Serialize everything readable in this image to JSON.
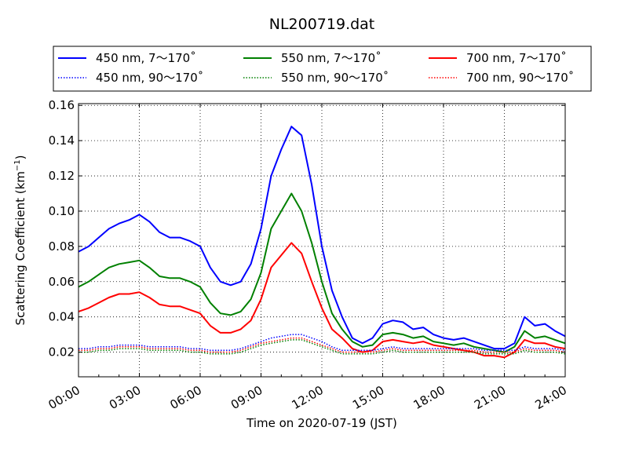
{
  "chart_data": {
    "type": "line",
    "title": "NL200719.dat",
    "xlabel": "Time on 2020-07-19 (JST)",
    "ylabel": "Scattering Coefficient (km",
    "ylabel_sup": "−1",
    "ylabel_tail": ")",
    "xlim": [
      0,
      24
    ],
    "ylim": [
      0.006,
      0.161
    ],
    "grid": true,
    "legend_position": "top",
    "x_ticks": [
      {
        "value": 0,
        "label": "00:00"
      },
      {
        "value": 3,
        "label": "03:00"
      },
      {
        "value": 6,
        "label": "06:00"
      },
      {
        "value": 9,
        "label": "09:00"
      },
      {
        "value": 12,
        "label": "12:00"
      },
      {
        "value": 15,
        "label": "15:00"
      },
      {
        "value": 18,
        "label": "18:00"
      },
      {
        "value": 21,
        "label": "21:00"
      },
      {
        "value": 24,
        "label": "24:00"
      }
    ],
    "y_ticks": [
      {
        "value": 0.02,
        "label": "0.02"
      },
      {
        "value": 0.04,
        "label": "0.04"
      },
      {
        "value": 0.06,
        "label": "0.06"
      },
      {
        "value": 0.08,
        "label": "0.08"
      },
      {
        "value": 0.1,
        "label": "0.10"
      },
      {
        "value": 0.12,
        "label": "0.12"
      },
      {
        "value": 0.14,
        "label": "0.14"
      },
      {
        "value": 0.16,
        "label": "0.16"
      }
    ],
    "x": [
      0,
      0.5,
      1,
      1.5,
      2,
      2.5,
      3,
      3.5,
      4,
      4.5,
      5,
      5.5,
      6,
      6.5,
      7,
      7.5,
      8,
      8.5,
      9,
      9.5,
      10,
      10.5,
      11,
      11.5,
      12,
      12.5,
      13,
      13.5,
      14,
      14.5,
      15,
      15.5,
      16,
      16.5,
      17,
      17.5,
      18,
      18.5,
      19,
      19.5,
      20,
      20.5,
      21,
      21.5,
      22,
      22.5,
      23,
      23.5,
      24
    ],
    "series": [
      {
        "name": "450 nm, 7～170˚",
        "color": "#0000ff",
        "style": "solid",
        "values": [
          0.077,
          0.08,
          0.085,
          0.09,
          0.093,
          0.095,
          0.098,
          0.094,
          0.088,
          0.085,
          0.085,
          0.083,
          0.08,
          0.068,
          0.06,
          0.058,
          0.06,
          0.07,
          0.09,
          0.12,
          0.135,
          0.148,
          0.143,
          0.115,
          0.08,
          0.055,
          0.04,
          0.028,
          0.025,
          0.028,
          0.036,
          0.038,
          0.037,
          0.033,
          0.034,
          0.03,
          0.028,
          0.027,
          0.028,
          0.026,
          0.024,
          0.022,
          0.022,
          0.025,
          0.04,
          0.035,
          0.036,
          0.032,
          0.029
        ]
      },
      {
        "name": "550 nm, 7～170˚",
        "color": "#008000",
        "style": "solid",
        "values": [
          0.057,
          0.06,
          0.064,
          0.068,
          0.07,
          0.071,
          0.072,
          0.068,
          0.063,
          0.062,
          0.062,
          0.06,
          0.057,
          0.048,
          0.042,
          0.041,
          0.043,
          0.05,
          0.065,
          0.09,
          0.1,
          0.11,
          0.1,
          0.082,
          0.06,
          0.042,
          0.033,
          0.026,
          0.023,
          0.024,
          0.03,
          0.031,
          0.03,
          0.028,
          0.029,
          0.026,
          0.025,
          0.024,
          0.025,
          0.023,
          0.022,
          0.021,
          0.02,
          0.023,
          0.032,
          0.028,
          0.029,
          0.027,
          0.025
        ]
      },
      {
        "name": "700 nm, 7～170˚",
        "color": "#ff0000",
        "style": "solid",
        "values": [
          0.043,
          0.045,
          0.048,
          0.051,
          0.053,
          0.053,
          0.054,
          0.051,
          0.047,
          0.046,
          0.046,
          0.044,
          0.042,
          0.035,
          0.031,
          0.031,
          0.033,
          0.038,
          0.05,
          0.068,
          0.075,
          0.082,
          0.076,
          0.06,
          0.045,
          0.033,
          0.028,
          0.022,
          0.02,
          0.021,
          0.026,
          0.027,
          0.026,
          0.025,
          0.026,
          0.024,
          0.023,
          0.022,
          0.021,
          0.02,
          0.018,
          0.018,
          0.017,
          0.02,
          0.027,
          0.025,
          0.025,
          0.023,
          0.022
        ]
      },
      {
        "name": "450 nm, 90～170˚",
        "color": "#0000ff",
        "style": "dotted",
        "values": [
          0.022,
          0.022,
          0.023,
          0.023,
          0.024,
          0.024,
          0.024,
          0.023,
          0.023,
          0.023,
          0.023,
          0.022,
          0.022,
          0.021,
          0.021,
          0.021,
          0.022,
          0.024,
          0.026,
          0.028,
          0.029,
          0.03,
          0.03,
          0.028,
          0.026,
          0.023,
          0.021,
          0.021,
          0.021,
          0.021,
          0.022,
          0.023,
          0.022,
          0.022,
          0.022,
          0.022,
          0.022,
          0.022,
          0.022,
          0.022,
          0.021,
          0.021,
          0.021,
          0.021,
          0.023,
          0.022,
          0.022,
          0.022,
          0.021
        ]
      },
      {
        "name": "550 nm, 90～170˚",
        "color": "#008000",
        "style": "dotted",
        "values": [
          0.02,
          0.02,
          0.021,
          0.021,
          0.022,
          0.022,
          0.022,
          0.021,
          0.021,
          0.021,
          0.021,
          0.02,
          0.02,
          0.019,
          0.019,
          0.019,
          0.02,
          0.022,
          0.024,
          0.025,
          0.026,
          0.027,
          0.027,
          0.025,
          0.023,
          0.021,
          0.019,
          0.019,
          0.019,
          0.019,
          0.02,
          0.021,
          0.02,
          0.02,
          0.02,
          0.02,
          0.02,
          0.02,
          0.02,
          0.02,
          0.019,
          0.019,
          0.019,
          0.019,
          0.021,
          0.02,
          0.02,
          0.02,
          0.019
        ]
      },
      {
        "name": "700 nm, 90～170˚",
        "color": "#ff0000",
        "style": "dotted",
        "values": [
          0.021,
          0.021,
          0.022,
          0.022,
          0.023,
          0.023,
          0.023,
          0.022,
          0.022,
          0.022,
          0.022,
          0.021,
          0.021,
          0.02,
          0.02,
          0.02,
          0.021,
          0.023,
          0.025,
          0.026,
          0.027,
          0.028,
          0.028,
          0.026,
          0.024,
          0.022,
          0.02,
          0.02,
          0.02,
          0.02,
          0.021,
          0.022,
          0.021,
          0.021,
          0.021,
          0.021,
          0.021,
          0.021,
          0.021,
          0.021,
          0.02,
          0.02,
          0.02,
          0.02,
          0.022,
          0.021,
          0.021,
          0.021,
          0.02
        ]
      }
    ]
  }
}
